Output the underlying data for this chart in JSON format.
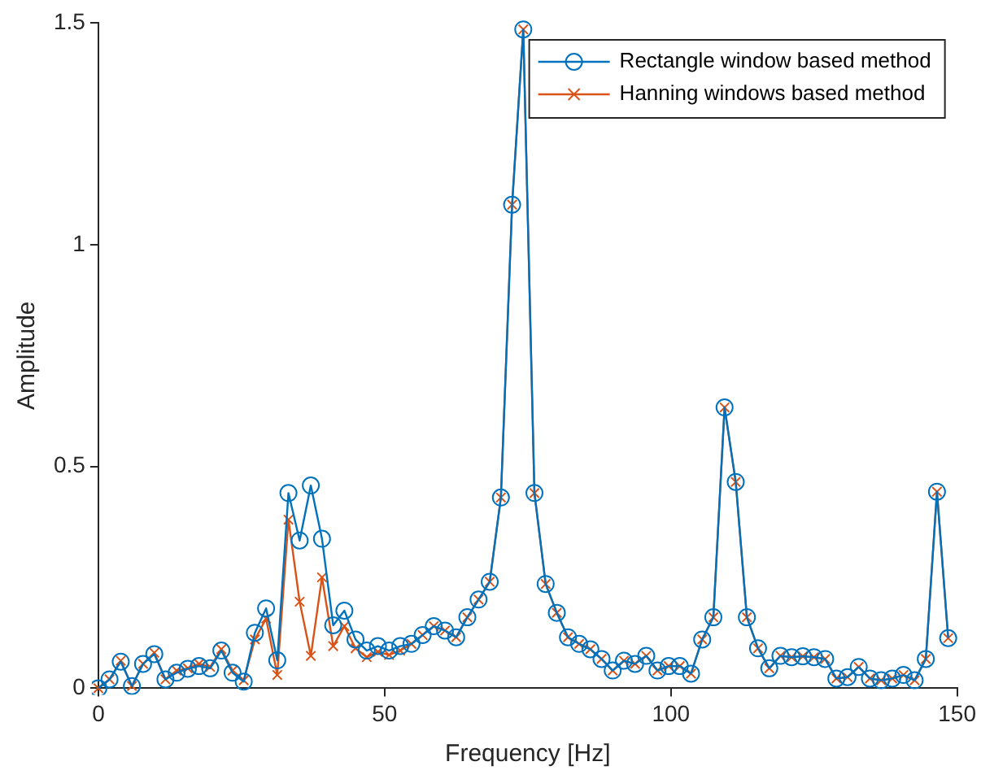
{
  "chart_data": {
    "type": "line",
    "xlabel": "Frequency [Hz]",
    "ylabel": "Amplitude",
    "x": [
      0,
      1.95,
      3.91,
      5.86,
      7.81,
      9.77,
      11.72,
      13.67,
      15.63,
      17.58,
      19.53,
      21.48,
      23.44,
      25.39,
      27.34,
      29.3,
      31.25,
      33.2,
      35.16,
      37.11,
      39.06,
      41.02,
      42.97,
      44.92,
      46.88,
      48.83,
      50.78,
      52.73,
      54.69,
      56.64,
      58.59,
      60.55,
      62.5,
      64.45,
      66.41,
      68.36,
      70.31,
      72.27,
      74.22,
      76.17,
      78.13,
      80.08,
      82.03,
      83.98,
      85.94,
      87.89,
      89.84,
      91.8,
      93.75,
      95.7,
      97.66,
      99.61,
      101.56,
      103.52,
      105.47,
      107.42,
      109.38,
      111.33,
      113.28,
      115.23,
      117.19,
      119.14,
      121.09,
      123.05,
      125,
      126.95,
      128.91,
      130.86,
      132.81,
      134.77,
      136.72,
      138.67,
      140.63,
      142.58,
      144.53,
      146.48,
      148.44
    ],
    "series": [
      {
        "name": "Rectangle window based method",
        "color": "#0072bd",
        "marker": "circle",
        "values": [
          0,
          0.02,
          0.06,
          0.005,
          0.055,
          0.077,
          0.02,
          0.035,
          0.044,
          0.05,
          0.045,
          0.085,
          0.035,
          0.015,
          0.125,
          0.18,
          0.063,
          0.44,
          0.333,
          0.457,
          0.337,
          0.142,
          0.175,
          0.11,
          0.085,
          0.095,
          0.085,
          0.095,
          0.1,
          0.12,
          0.14,
          0.13,
          0.115,
          0.16,
          0.2,
          0.24,
          0.43,
          1.09,
          1.485,
          0.44,
          0.235,
          0.17,
          0.115,
          0.1,
          0.088,
          0.066,
          0.04,
          0.062,
          0.055,
          0.073,
          0.04,
          0.05,
          0.05,
          0.033,
          0.11,
          0.16,
          0.633,
          0.465,
          0.16,
          0.09,
          0.045,
          0.073,
          0.07,
          0.072,
          0.07,
          0.066,
          0.022,
          0.025,
          0.048,
          0.022,
          0.018,
          0.022,
          0.03,
          0.018,
          0.066,
          0.443,
          0.113
        ]
      },
      {
        "name": "Hanning windows based method",
        "color": "#d95319",
        "marker": "cross",
        "values": [
          0,
          0.02,
          0.062,
          0.005,
          0.055,
          0.08,
          0.02,
          0.04,
          0.045,
          0.055,
          0.048,
          0.088,
          0.04,
          0.018,
          0.11,
          0.157,
          0.03,
          0.38,
          0.195,
          0.073,
          0.25,
          0.095,
          0.14,
          0.09,
          0.07,
          0.082,
          0.075,
          0.085,
          0.1,
          0.12,
          0.14,
          0.13,
          0.115,
          0.16,
          0.2,
          0.24,
          0.43,
          1.09,
          1.485,
          0.44,
          0.235,
          0.17,
          0.115,
          0.1,
          0.088,
          0.066,
          0.04,
          0.062,
          0.055,
          0.073,
          0.04,
          0.05,
          0.05,
          0.033,
          0.11,
          0.16,
          0.633,
          0.465,
          0.16,
          0.09,
          0.045,
          0.073,
          0.07,
          0.072,
          0.07,
          0.066,
          0.022,
          0.025,
          0.048,
          0.022,
          0.018,
          0.022,
          0.03,
          0.018,
          0.066,
          0.443,
          0.113
        ]
      }
    ],
    "xlim": [
      0,
      150
    ],
    "xticks": [
      0,
      50,
      100,
      150
    ],
    "ylim": [
      0,
      1.5
    ],
    "yticks": [
      0,
      0.5,
      1,
      1.5
    ],
    "legend": "top right",
    "line_style": "solid"
  }
}
